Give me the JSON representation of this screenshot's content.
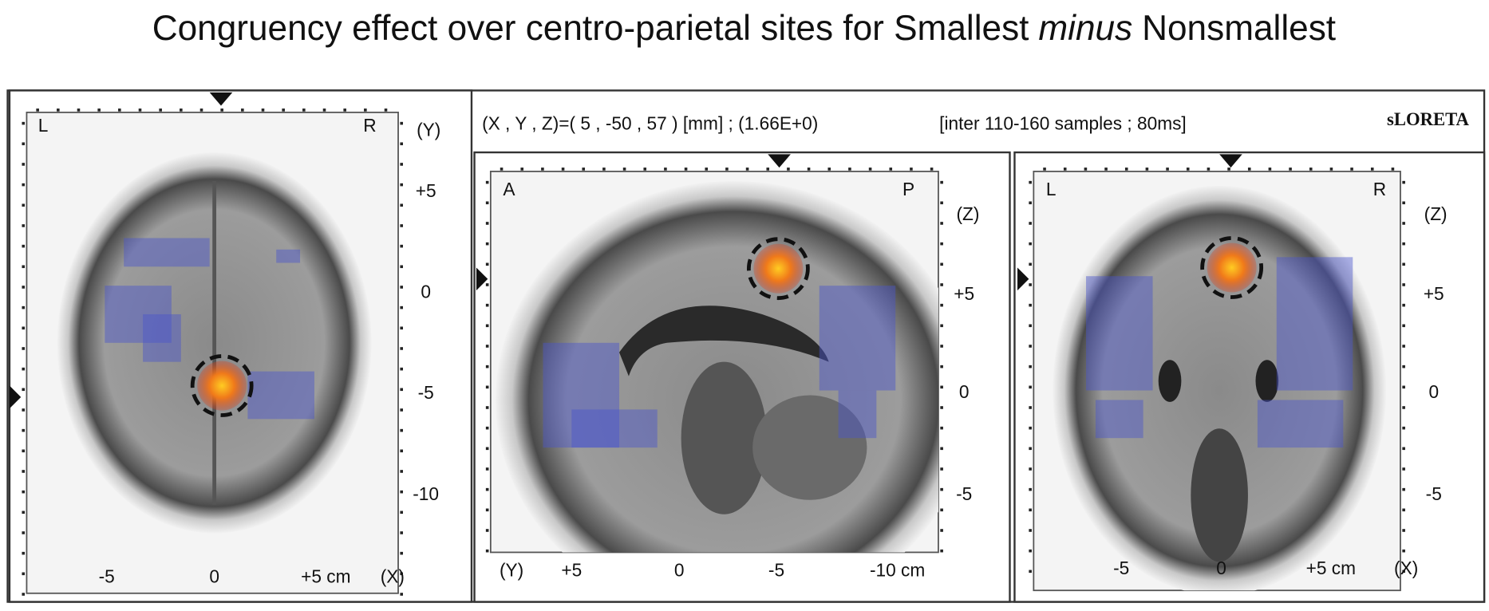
{
  "title": {
    "text": "Congruency effect over centro-parietal sites for Smallest",
    "emphasis": "minus",
    "end": "Nonsmallest"
  },
  "header": {
    "coordinates": "(X , Y , Z)=( 5 , -50 , 57 ) [mm]  ;  (1.66E+0)",
    "interval": "[inter 110-160 samples ; 80ms]",
    "software": "sLORETA"
  },
  "panels": [
    {
      "corner_labels": [
        "L",
        "R"
      ],
      "vertical_axis": "(Y)",
      "vertical_ticks": [
        "+5",
        "0",
        "-5",
        "-10"
      ],
      "horizontal_ticks": [
        "-5",
        "0",
        "+5 cm"
      ],
      "horizontal_axis": "(X)"
    },
    {
      "corner_labels": [
        "A",
        "P"
      ],
      "vertical_axis": "(Z)",
      "vertical_ticks": [
        "+5",
        "0",
        "-5"
      ],
      "horizontal_ticks": [
        "+5",
        "0",
        "-5",
        "-10 cm"
      ],
      "horizontal_axis": "(Y)"
    },
    {
      "corner_labels": [
        "L",
        "R"
      ],
      "vertical_axis": "(Z)",
      "vertical_ticks": [
        "+5",
        "0",
        "-5"
      ],
      "horizontal_ticks": [
        "-5",
        "0",
        "+5 cm"
      ],
      "horizontal_axis": "(X)"
    }
  ]
}
